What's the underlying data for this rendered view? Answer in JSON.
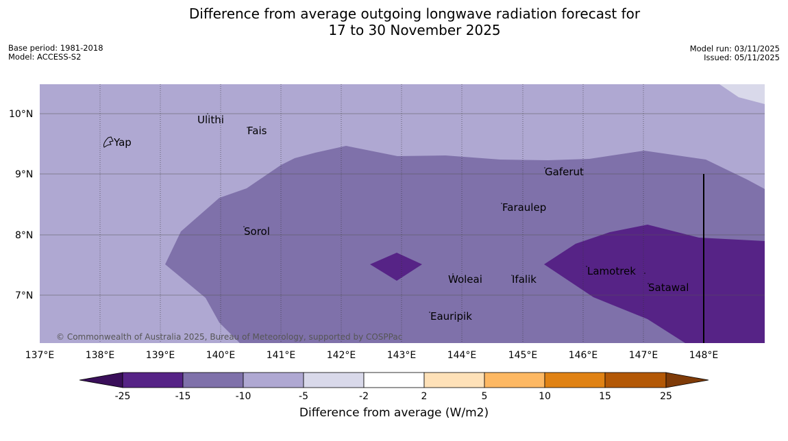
{
  "title": {
    "line1": "Difference from average outgoing longwave radiation forecast for",
    "line2": "17 to 30 November 2025"
  },
  "meta": {
    "base_period": "Base period: 1981-2018",
    "model": "Model: ACCESS-S2",
    "model_run": "Model run: 03/11/2025",
    "issued": "Issued: 05/11/2025"
  },
  "map": {
    "lon_labels": [
      "137°E",
      "138°E",
      "139°E",
      "140°E",
      "141°E",
      "142°E",
      "143°E",
      "144°E",
      "145°E",
      "146°E",
      "147°E",
      "148°E"
    ],
    "lat_labels": [
      "10°N",
      "9°N",
      "8°N",
      "7°N"
    ],
    "places": [
      "Ulithi",
      "Fais",
      "Yap",
      "Gaferut",
      "Faraulep",
      "Sorol",
      "Lamotrek",
      "Woleai",
      "Ifalik",
      "Satawal",
      "Eauripik"
    ],
    "copyright": "© Commonwealth of Australia 2025, Bureau of Meteorology, supported by COSPPac",
    "fill_colors": {
      "band_-5_-2": "#d9d9ea",
      "band_-10_-5": "#afa8d2",
      "band_-15_-10": "#7f71aa",
      "band_-25_-15": "#562386"
    }
  },
  "colorbar": {
    "ticks": [
      "-25",
      "-15",
      "-10",
      "-5",
      "-2",
      "2",
      "5",
      "10",
      "15",
      "25"
    ],
    "colors": [
      "#3a0f5a",
      "#562386",
      "#7f71aa",
      "#afa8d2",
      "#d9d9ea",
      "#ffffff",
      "#fee1b8",
      "#fdb863",
      "#e08214",
      "#b35806",
      "#7f3b08"
    ],
    "label": "Difference from average (W/m2)"
  }
}
